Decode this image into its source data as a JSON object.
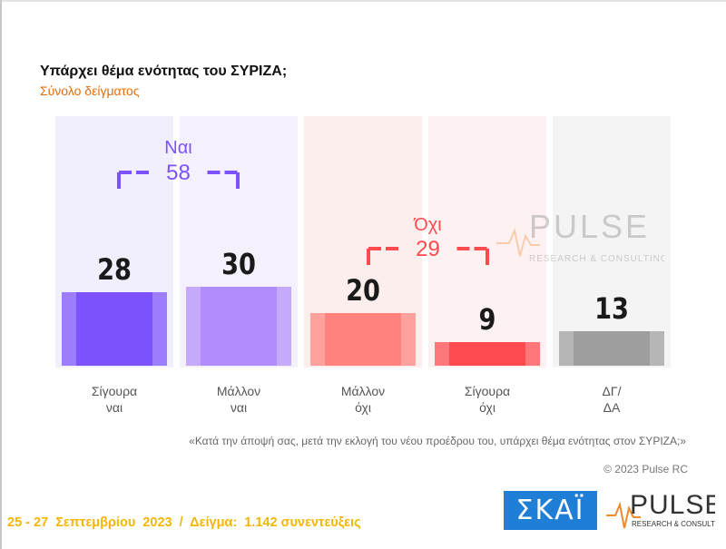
{
  "title": "Υπάρχει θέμα ενότητας του ΣΥΡΙΖΑ;",
  "subtitle": "Σύνολο δείγματος",
  "chart_data": {
    "type": "bar",
    "categories": [
      "Σίγουρα ναι",
      "Μάλλον ναι",
      "Μάλλον όχι",
      "Σίγουρα όχι",
      "ΔΓ/ ΔΑ"
    ],
    "category_lines": [
      [
        "Σίγουρα",
        "ναι"
      ],
      [
        "Μάλλον",
        "ναι"
      ],
      [
        "Μάλλον",
        "όχι"
      ],
      [
        "Σίγουρα",
        "όχι"
      ],
      [
        "ΔΓ/",
        "ΔΑ"
      ]
    ],
    "values": [
      28,
      30,
      20,
      9,
      13
    ],
    "value_labels": [
      "28",
      "30",
      "20",
      "9",
      "13"
    ],
    "bar_colors": [
      "#7b52fb",
      "#b18dfb",
      "#ff837c",
      "#ff4a4f",
      "#9e9e9e"
    ],
    "column_bg_colors": [
      "#f1eefd",
      "#f4f1fd",
      "#fdeeee",
      "#fdf1f1",
      "#f4f4f4"
    ],
    "groups": [
      {
        "label": "Ναι",
        "value_label": "58",
        "value": 58,
        "color": "#7b52fb",
        "spans": [
          0,
          1
        ]
      },
      {
        "label": "Όχι",
        "value_label": "29",
        "value": 29,
        "color": "#ff4a4f",
        "spans": [
          2,
          3
        ]
      }
    ],
    "ylim": [
      0,
      100
    ],
    "grid": false,
    "legend": "none"
  },
  "question": "«Κατά την άποψή σας, μετά την εκλογή του νέου προέδρου του, υπάρχει θέμα ενότητας στον ΣΥΡΙΖΑ;»",
  "copyright": "© 2023 Pulse RC",
  "footer": "25 - 27  Σεπτεμβρίου  2023  /  Δείγμα:  1.142 συνεντεύξεις",
  "watermark": {
    "name": "PULSE",
    "tagline": "RESEARCH & CONSULTING"
  },
  "logos": {
    "skai": "ΣΚΑΪ",
    "pulse": "PULSE",
    "pulse_tagline": "RESEARCH & CONSULTING"
  }
}
